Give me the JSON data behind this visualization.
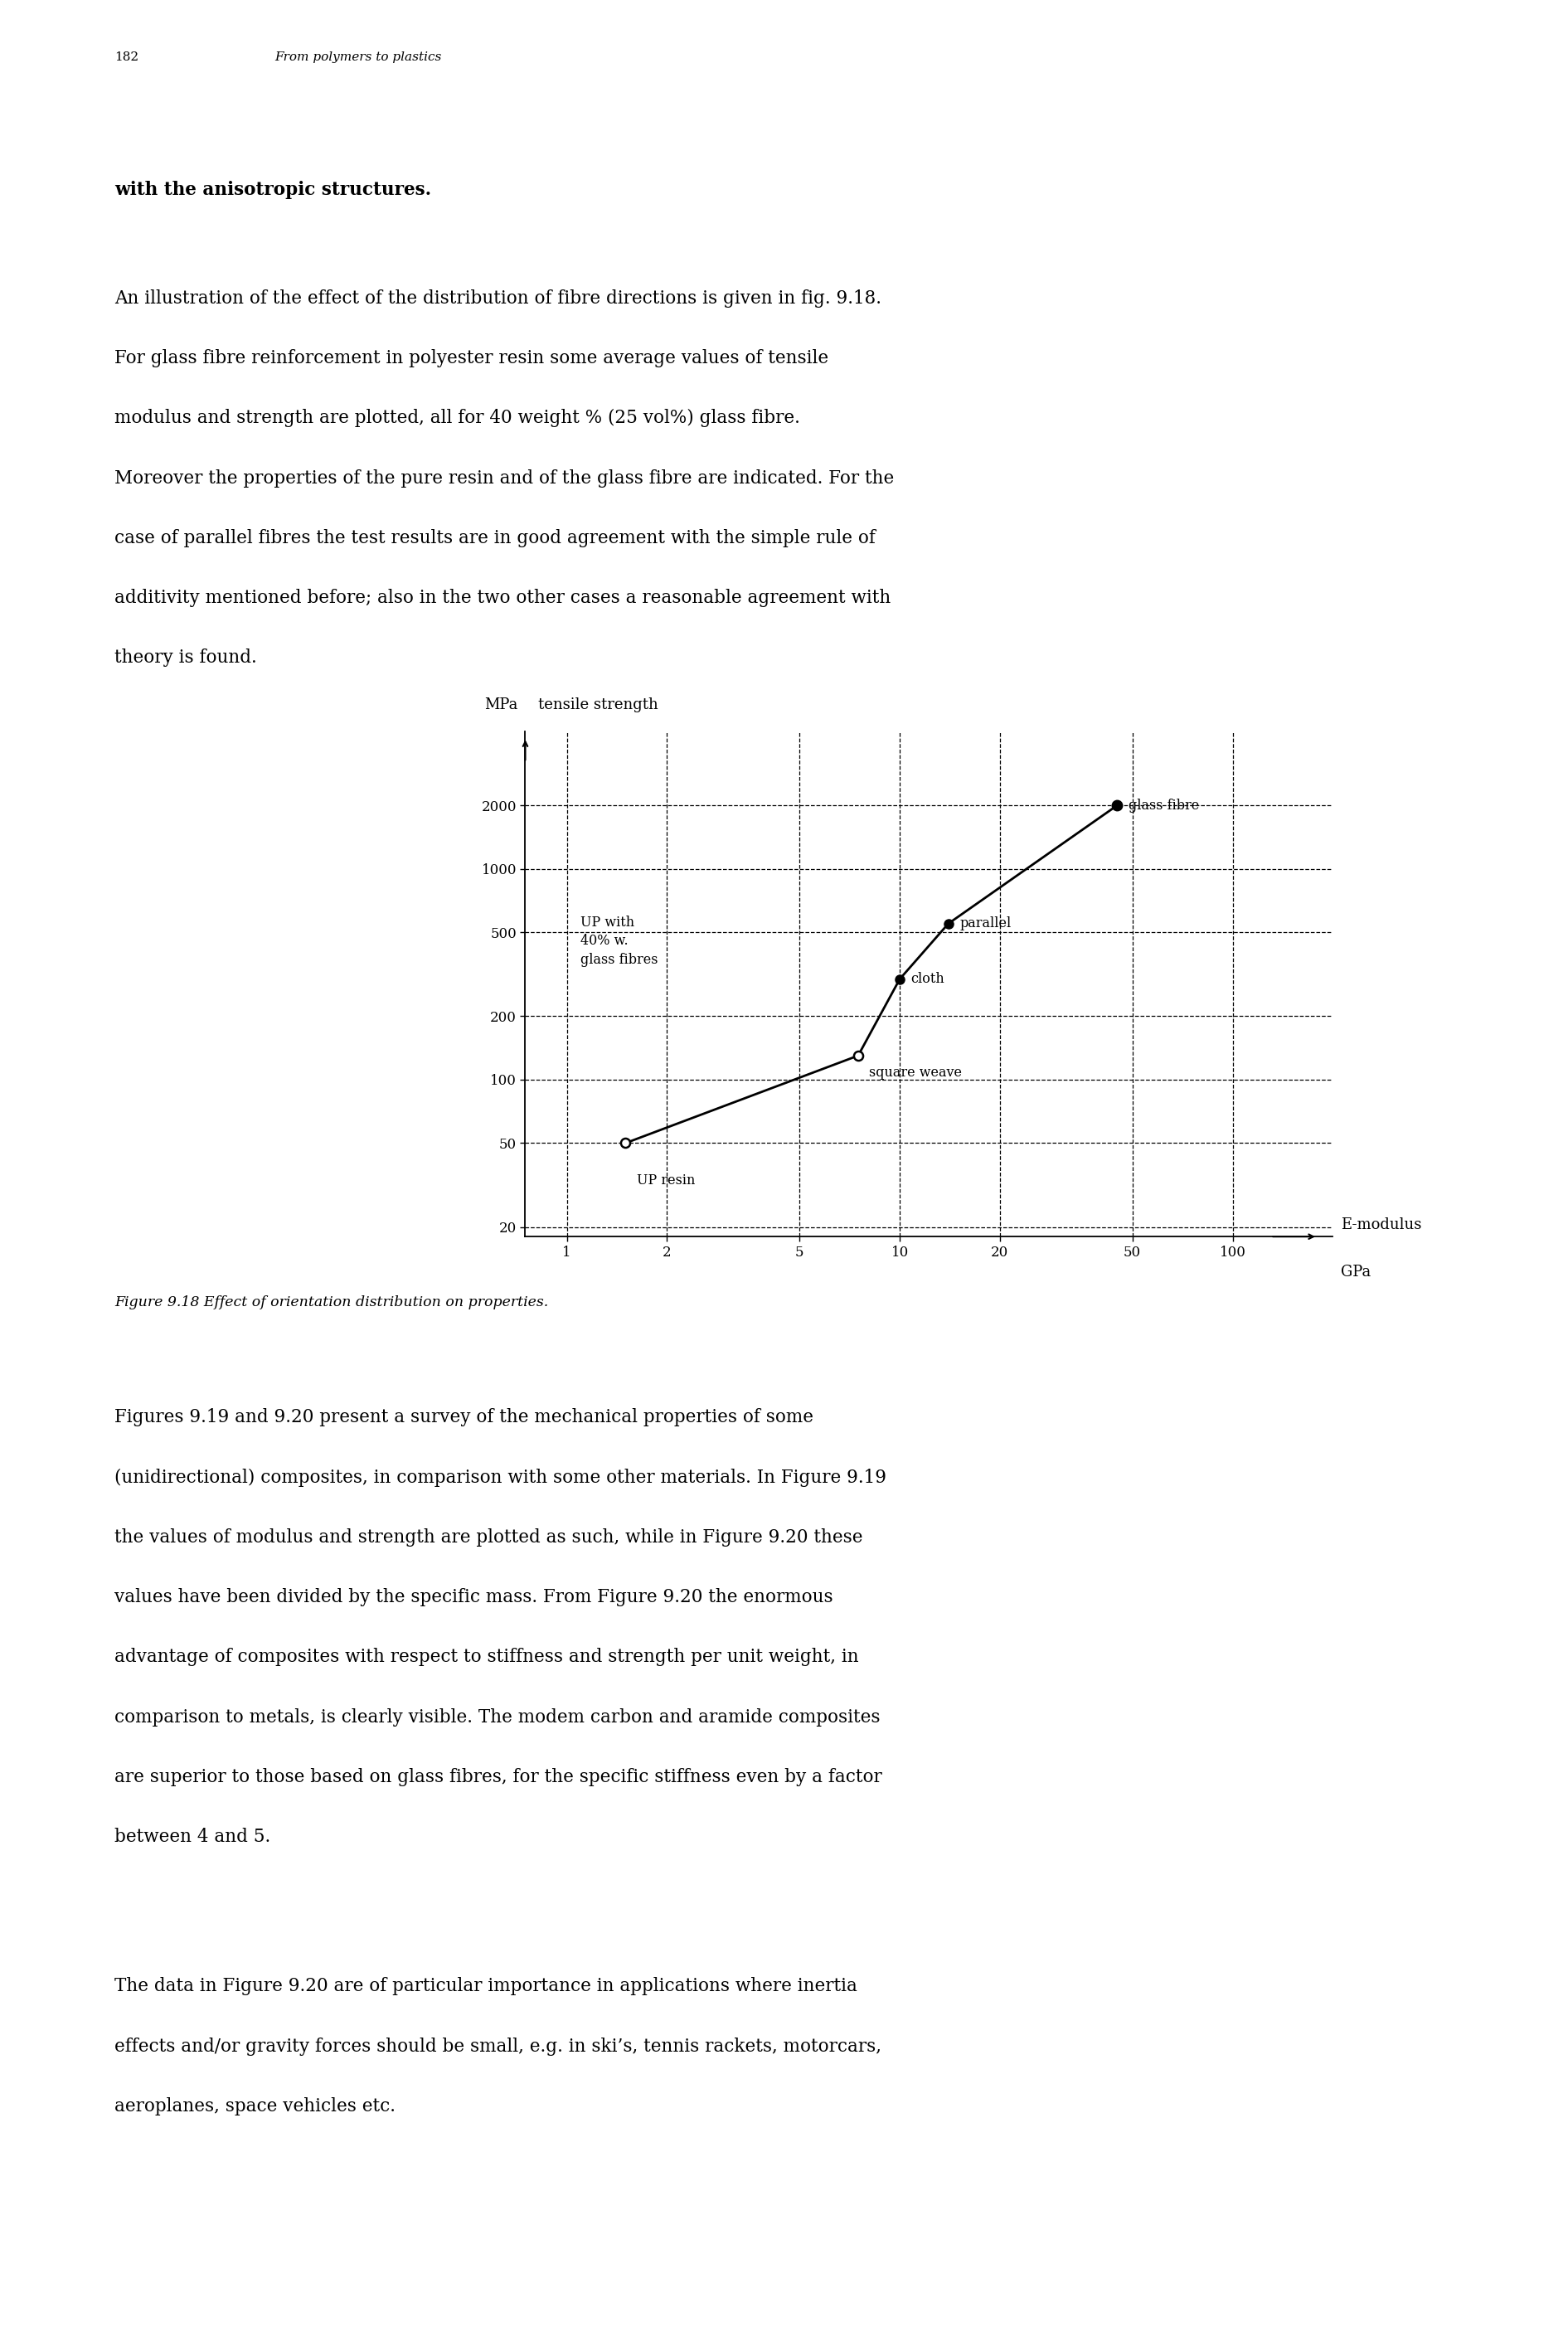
{
  "page_number": "182",
  "page_header": "From polymers to plastics",
  "paragraph1": "with the anisotropic structures.",
  "para2_lines": [
    "An illustration of the effect of the distribution of fibre directions is given in fig. 9.18.",
    "For glass fibre reinforcement in polyester resin some average values of tensile",
    "modulus and strength are plotted, all for 40 weight % (25 vol%) glass fibre.",
    "Moreover the properties of the pure resin and of the glass fibre are indicated. For the",
    "case of parallel fibres the test results are in good agreement with the simple rule of",
    "additivity mentioned before; also in the two other cases a reasonable agreement with",
    "theory is found."
  ],
  "figure_caption": "Figure 9.18 Effect of orientation distribution on properties.",
  "para3_lines": [
    "Figures 9.19 and 9.20 present a survey of the mechanical properties of some",
    "(unidirectional) composites, in comparison with some other materials. In Figure 9.19",
    "the values of modulus and strength are plotted as such, while in Figure 9.20 these",
    "values have been divided by the specific mass. From Figure 9.20 the enormous",
    "advantage of composites with respect to stiffness and strength per unit weight, in",
    "comparison to metals, is clearly visible. The modem carbon and aramide composites",
    "are superior to those based on glass fibres, for the specific stiffness even by a factor",
    "between 4 and 5."
  ],
  "para4_lines": [
    "The data in Figure 9.20 are of particular importance in applications where inertia",
    "effects and/or gravity forces should be small, e.g. in ski’s, tennis rackets, motorcars,",
    "aeroplanes, space vehicles etc."
  ],
  "ylabel": "MPa",
  "ylabel2": "tensile strength",
  "xlabel": "E-modulus",
  "xlabel2": "GPa",
  "y_ticks": [
    20,
    50,
    100,
    200,
    500,
    1000,
    2000
  ],
  "x_ticks": [
    1,
    2,
    5,
    10,
    20,
    50,
    100
  ],
  "x_tick_labels": [
    "1",
    "2",
    "5",
    "10",
    "20",
    "50",
    "100"
  ],
  "y_tick_labels": [
    "20",
    "50",
    "100",
    "200",
    "500",
    "1000",
    "2000"
  ],
  "UP_resin_x": 1.5,
  "UP_resin_y": 50,
  "square_weave_x": 7.5,
  "square_weave_y": 130,
  "cloth_x": 10,
  "cloth_y": 300,
  "parallel_x": 14,
  "parallel_y": 550,
  "glass_fibre_x": 45,
  "glass_fibre_y": 2000,
  "background_color": "#ffffff",
  "text_color": "#000000"
}
